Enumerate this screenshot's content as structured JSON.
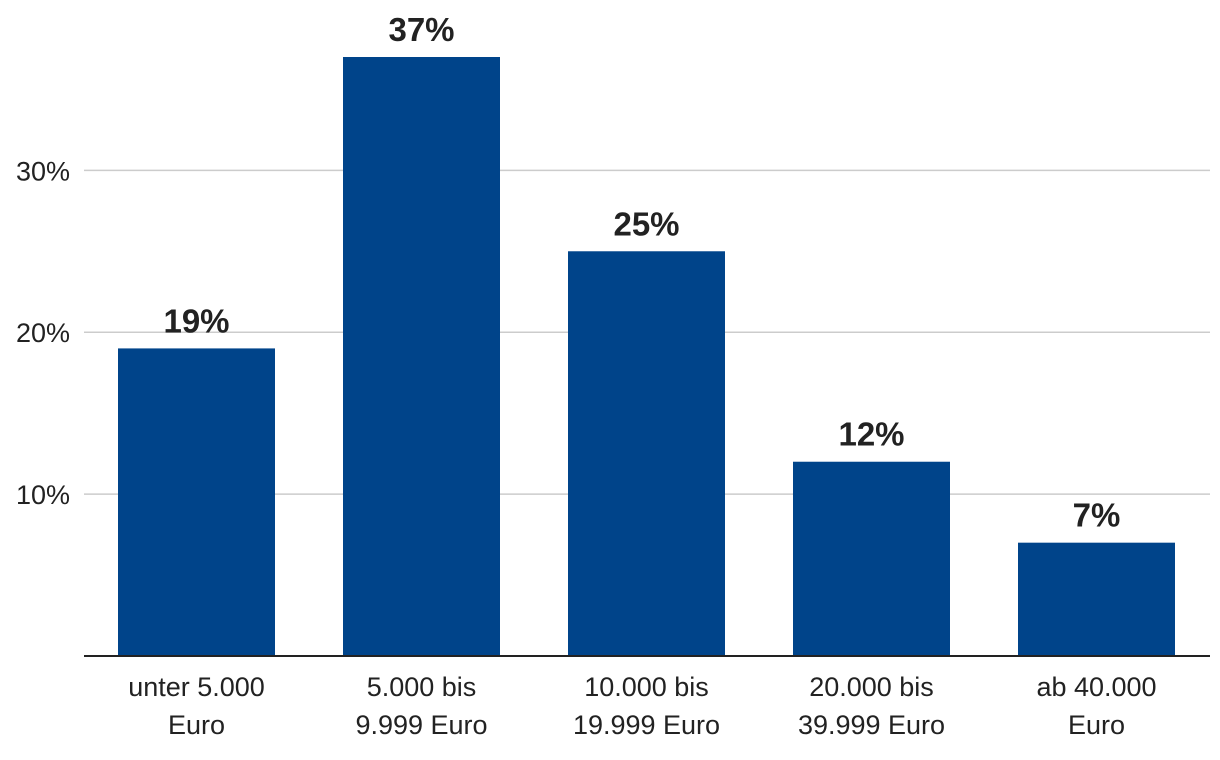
{
  "chart_data": {
    "type": "bar",
    "title": "",
    "xlabel": "",
    "ylabel": "",
    "categories": [
      [
        "unter 5.000",
        "Euro"
      ],
      [
        "5.000 bis",
        "9.999 Euro"
      ],
      [
        "10.000 bis",
        "19.999 Euro"
      ],
      [
        "20.000 bis",
        "39.999 Euro"
      ],
      [
        "ab 40.000",
        "Euro"
      ]
    ],
    "values": [
      19,
      37,
      25,
      12,
      7
    ],
    "value_labels": [
      "19%",
      "37%",
      "25%",
      "12%",
      "7%"
    ],
    "ylim": [
      0,
      37
    ],
    "yticks": [
      10,
      20,
      30
    ],
    "ytick_labels": [
      "10%",
      "20%",
      "30%"
    ],
    "grid": true,
    "legend": "none",
    "bar_color": "#00448a"
  }
}
